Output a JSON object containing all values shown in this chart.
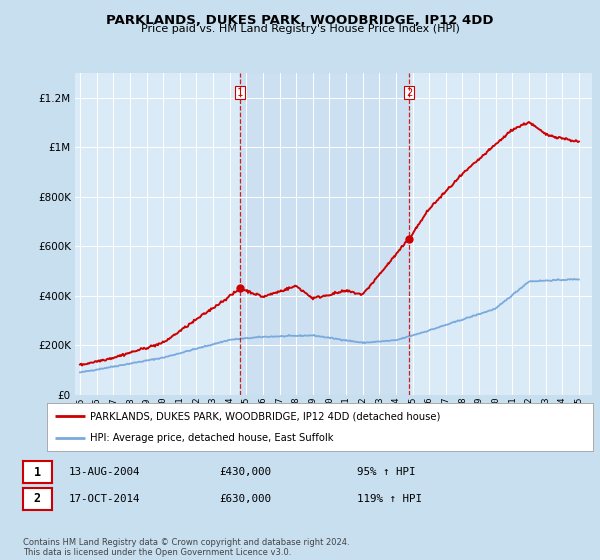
{
  "title": "PARKLANDS, DUKES PARK, WOODBRIDGE, IP12 4DD",
  "subtitle": "Price paid vs. HM Land Registry's House Price Index (HPI)",
  "bg_color": "#c8dff0",
  "plot_bg_color": "#daeaf7",
  "shade_color": "#c0d8ee",
  "legend_line1": "PARKLANDS, DUKES PARK, WOODBRIDGE, IP12 4DD (detached house)",
  "legend_line2": "HPI: Average price, detached house, East Suffolk",
  "footer": "Contains HM Land Registry data © Crown copyright and database right 2024.\nThis data is licensed under the Open Government Licence v3.0.",
  "annotation1": {
    "num": "1",
    "date": "13-AUG-2004",
    "price": "£430,000",
    "hpi": "95% ↑ HPI"
  },
  "annotation2": {
    "num": "2",
    "date": "17-OCT-2014",
    "price": "£630,000",
    "hpi": "119% ↑ HPI"
  },
  "vline1_x": 2004.62,
  "vline2_x": 2014.79,
  "ylim_max": 1300000,
  "red_color": "#cc0000",
  "blue_color": "#7aaadd",
  "dot1_x": 2004.62,
  "dot1_y": 430000,
  "dot2_x": 2014.79,
  "dot2_y": 630000,
  "yticks": [
    0,
    200000,
    400000,
    600000,
    800000,
    1000000,
    1200000
  ],
  "xtick_start": 1995,
  "xtick_end": 2025
}
